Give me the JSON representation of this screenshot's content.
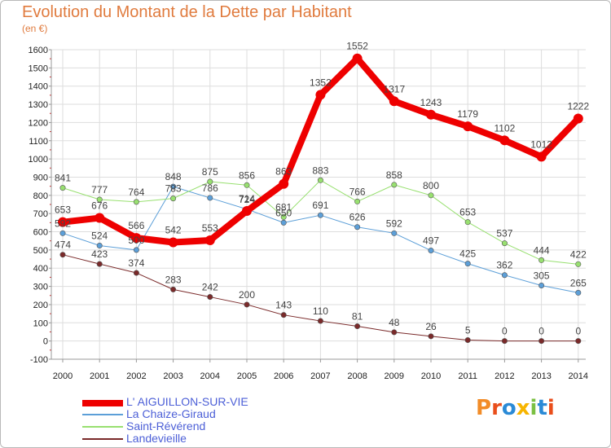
{
  "header": {
    "title": "Evolution du Montant de la Dette par Habitant",
    "unit": "(en €)"
  },
  "logo": {
    "letters": [
      "P",
      "r",
      "o",
      "x",
      "i",
      "t",
      "i"
    ],
    "colors": [
      "#f28c28",
      "#e94e1b",
      "#2a8ad6",
      "#f7b500",
      "#7bc043",
      "#2a8ad6",
      "#e94e1b"
    ]
  },
  "chart_data": {
    "type": "line",
    "x": [
      "2000",
      "2001",
      "2002",
      "2003",
      "2004",
      "2005",
      "2006",
      "2007",
      "2008",
      "2009",
      "2010",
      "2011",
      "2012",
      "2013",
      "2014"
    ],
    "ylim": [
      -100,
      1600
    ],
    "yticks": [
      -100,
      0,
      100,
      200,
      300,
      400,
      500,
      600,
      700,
      800,
      900,
      1000,
      1100,
      1200,
      1300,
      1400,
      1500,
      1600
    ],
    "grid": true,
    "legend": "bottom-left",
    "series": [
      {
        "name": "L' AIGUILLON-SUR-VIE",
        "color": "#ee0000",
        "width": 8,
        "marker": 6,
        "values": [
          653,
          676,
          566,
          542,
          553,
          714,
          863,
          1352,
          1552,
          1317,
          1243,
          1179,
          1102,
          1012,
          1222
        ]
      },
      {
        "name": "La Chaize-Giraud",
        "color": "#5c9fd8",
        "width": 1,
        "marker": 3.2,
        "values": [
          592,
          524,
          500,
          848,
          786,
          724,
          650,
          691,
          626,
          592,
          497,
          425,
          362,
          305,
          265
        ]
      },
      {
        "name": "Saint-Révérend",
        "color": "#98e070",
        "width": 1,
        "marker": 3.2,
        "values": [
          841,
          777,
          764,
          783,
          875,
          856,
          681,
          883,
          766,
          858,
          800,
          653,
          537,
          444,
          422
        ]
      },
      {
        "name": "Landevieille",
        "color": "#7a2a2a",
        "width": 1,
        "marker": 3.2,
        "values": [
          474,
          423,
          374,
          283,
          242,
          200,
          143,
          110,
          81,
          48,
          26,
          5,
          0,
          0,
          0
        ]
      }
    ]
  }
}
